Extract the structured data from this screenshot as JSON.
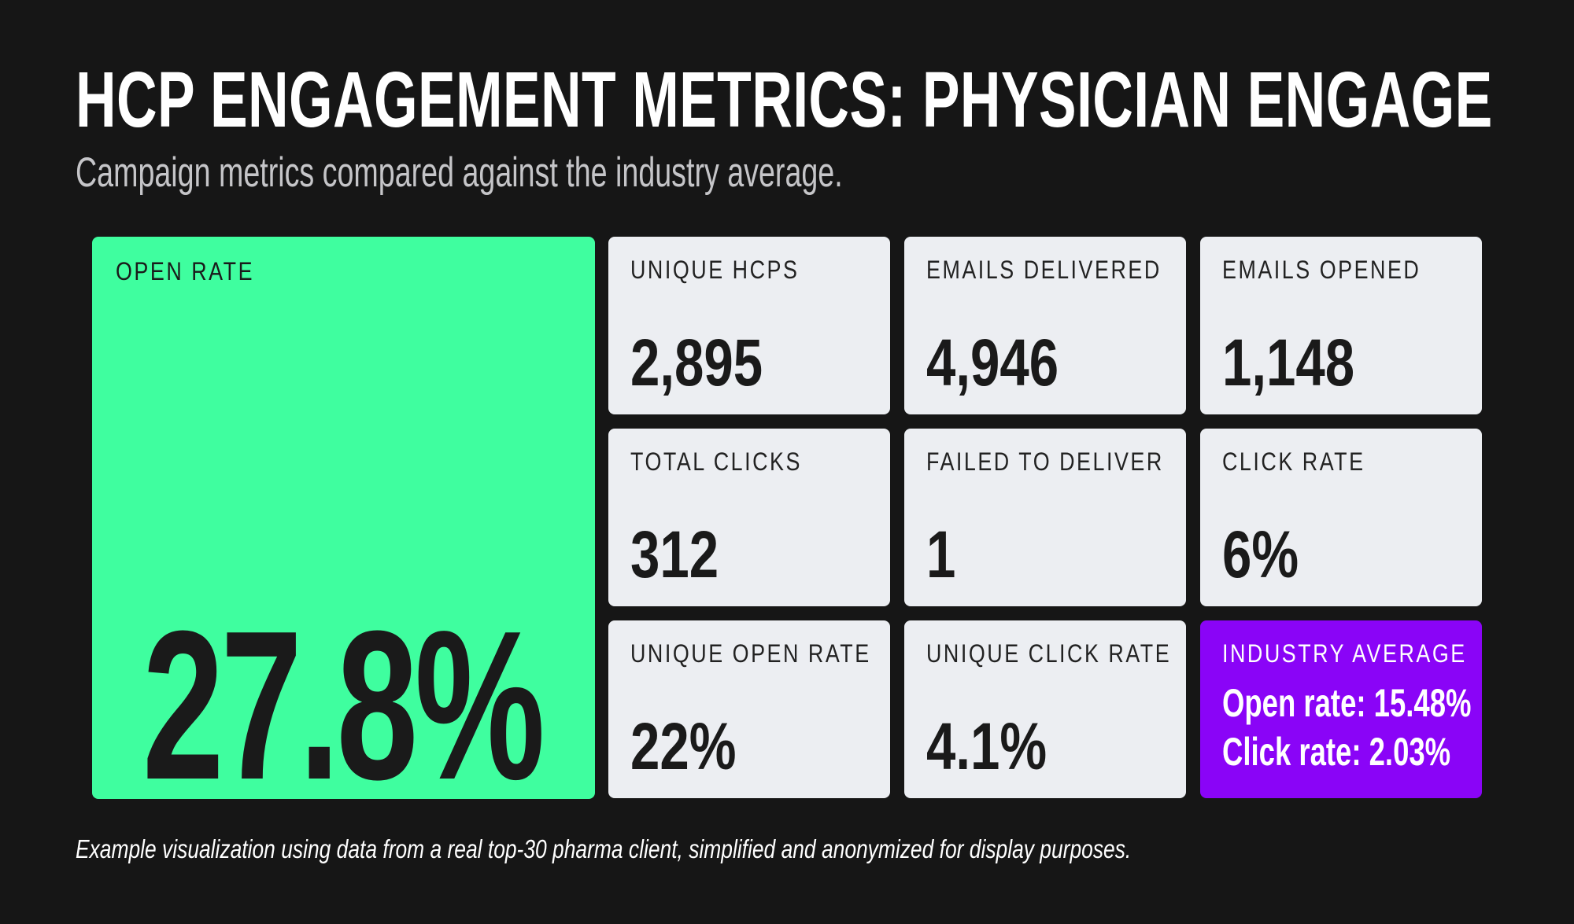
{
  "header": {
    "title": "HCP ENGAGEMENT METRICS: PHYSICIAN ENGAGE",
    "subtitle": "Campaign metrics compared against the industry average."
  },
  "hero": {
    "label": "OPEN RATE",
    "value": "27.8%"
  },
  "metrics": [
    {
      "label": "UNIQUE HCPS",
      "value": "2,895"
    },
    {
      "label": "EMAILS DELIVERED",
      "value": "4,946"
    },
    {
      "label": "EMAILS OPENED",
      "value": "1,148"
    },
    {
      "label": "TOTAL CLICKS",
      "value": "312"
    },
    {
      "label": "FAILED TO DELIVER",
      "value": "1"
    },
    {
      "label": "CLICK RATE",
      "value": "6%"
    },
    {
      "label": "UNIQUE OPEN RATE",
      "value": "22%"
    },
    {
      "label": "UNIQUE CLICK RATE",
      "value": "4.1%"
    }
  ],
  "industry_average": {
    "label": "INDUSTRY AVERAGE",
    "open_rate": "Open rate: 15.48%",
    "click_rate": "Click rate: 2.03%"
  },
  "footnote": "Example visualization using data from a real top-30 pharma client, simplified and anonymized for display purposes.",
  "colors": {
    "background": "#161616",
    "hero_card": "#3ffe9f",
    "metric_card": "#eceef2",
    "accent_card": "#8a04f7",
    "text_dark": "#1a1a1a",
    "text_light": "#ffffff",
    "subtitle_text": "#c5c5c8",
    "card_label_text": "#222222"
  }
}
